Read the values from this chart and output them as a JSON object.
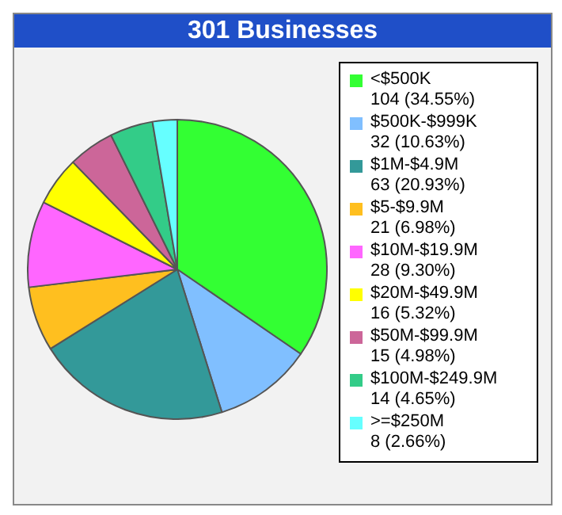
{
  "chart_data": {
    "type": "pie",
    "title": "301 Businesses",
    "categories": [
      "<$500K",
      "$500K-$999K",
      "$1M-$4.9M",
      "$5-$9.9M",
      "$10M-$19.9M",
      "$20M-$49.9M",
      "$50M-$99.9M",
      "$100M-$249.9M",
      ">=$250M"
    ],
    "values": [
      104,
      32,
      63,
      21,
      28,
      16,
      15,
      14,
      8
    ],
    "value_labels": [
      "104 (34.55%)",
      "32 (10.63%)",
      "63 (20.93%)",
      "21 (6.98%)",
      "28 (9.30%)",
      "16 (5.32%)",
      "15 (4.98%)",
      "14 (4.65%)",
      "8 (2.66%)"
    ],
    "colors": [
      "#33ff33",
      "#80bfff",
      "#339999",
      "#ffbf1f",
      "#ff66ff",
      "#ffff00",
      "#cc6699",
      "#33cc88",
      "#66ffff"
    ],
    "legend": "right"
  }
}
